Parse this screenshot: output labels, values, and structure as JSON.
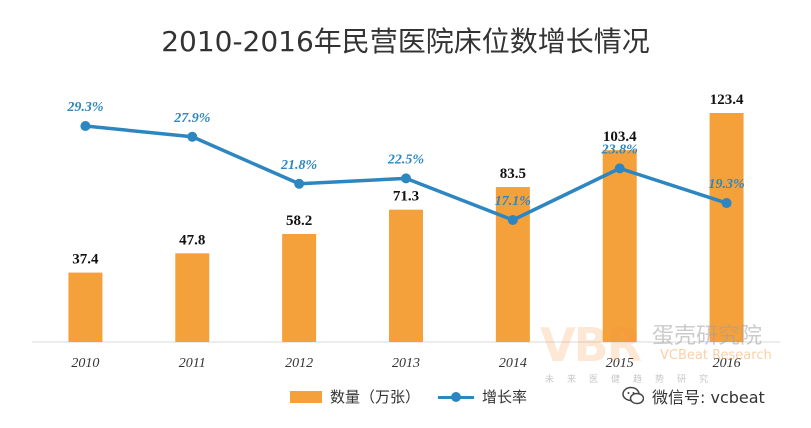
{
  "chart_data": {
    "type": "bar+line",
    "title": "2010-2016年民营医院床位数增长情况",
    "categories": [
      "2010",
      "2011",
      "2012",
      "2013",
      "2014",
      "2015",
      "2016"
    ],
    "series": [
      {
        "name": "数量（万张）",
        "type": "bar",
        "values": [
          37.4,
          47.8,
          58.2,
          71.3,
          83.5,
          103.4,
          123.4
        ],
        "labels": [
          "37.4",
          "47.8",
          "58.2",
          "71.3",
          "83.5",
          "103.4",
          "123.4"
        ]
      },
      {
        "name": "增长率",
        "type": "line",
        "values": [
          29.3,
          27.9,
          21.8,
          22.5,
          17.1,
          23.8,
          19.3
        ],
        "labels": [
          "29.3%",
          "27.9%",
          "21.8%",
          "22.5%",
          "17.1%",
          "23.8%",
          "19.3%"
        ]
      }
    ],
    "bar_ylim": [
      0,
      130
    ],
    "line_ylim": [
      -20,
      40
    ],
    "xlabel": "",
    "ylabel": "",
    "grid": false,
    "legend_position": "bottom"
  },
  "colors": {
    "bar": "#f4a13b",
    "line": "#2e86c1"
  },
  "watermark": {
    "logo": "VBR",
    "name": "蛋壳研究院",
    "en": "VCBeat Research",
    "tagline": "未来医健趋势研究"
  },
  "source": {
    "label": "微信号: vcbeat"
  }
}
